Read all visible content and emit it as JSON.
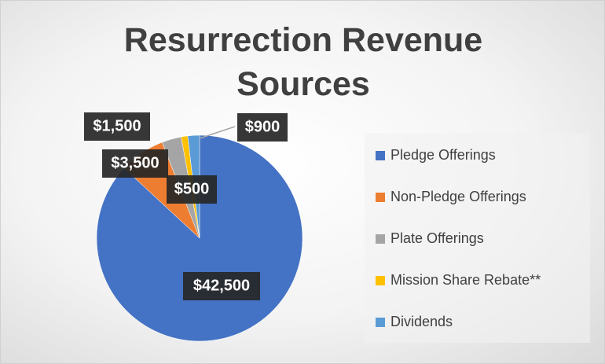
{
  "chart_data": {
    "type": "pie",
    "title": "Resurrection Revenue Sources",
    "categories": [
      "Pledge Offerings",
      "Non-Pledge Offerings",
      "Plate Offerings",
      "Mission Share Rebate**",
      "Dividends"
    ],
    "values": [
      42500,
      3500,
      1500,
      500,
      900
    ],
    "value_labels": [
      "$42,500",
      "$3,500",
      "$1,500",
      "$500",
      "$900"
    ],
    "colors": [
      "#4472c4",
      "#ed7d31",
      "#a5a5a5",
      "#ffc000",
      "#5b9bd5"
    ],
    "legend": "right"
  }
}
